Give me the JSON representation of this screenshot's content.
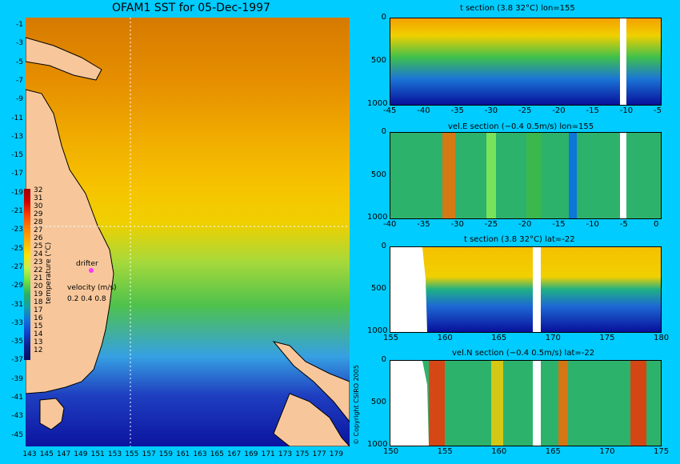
{
  "map": {
    "title": "OFAM1 SST for 05-Dec-1997",
    "lat_ticks": [
      "-1",
      "-3",
      "-5",
      "-7",
      "-9",
      "-11",
      "-13",
      "-15",
      "-17",
      "-19",
      "-21",
      "-23",
      "-25",
      "-27",
      "-29",
      "-31",
      "-33",
      "-35",
      "-37",
      "-39",
      "-41",
      "-43",
      "-45"
    ],
    "lon_ticks": [
      "143",
      "145",
      "147",
      "149",
      "151",
      "153",
      "155",
      "157",
      "159",
      "161",
      "163",
      "165",
      "167",
      "169",
      "171",
      "173",
      "175",
      "177",
      "179"
    ],
    "colorbar_label": "temperature (°C)",
    "colorbar_ticks": [
      "32",
      "31",
      "30",
      "29",
      "28",
      "27",
      "26",
      "25",
      "24",
      "23",
      "22",
      "21",
      "20",
      "19",
      "18",
      "17",
      "16",
      "15",
      "14",
      "13",
      "12"
    ],
    "drifter_label": "drifter",
    "velocity_label": "velocity (m/s)",
    "velocity_values": "0.2 0.4 0.8"
  },
  "sections": {
    "panel1": {
      "title": "t section (3.8    32°C) lon=155",
      "x_ticks": [
        "-45",
        "-40",
        "-35",
        "-30",
        "-25",
        "-20",
        "-15",
        "-10",
        "-5"
      ],
      "y_ticks": [
        "0",
        "500",
        "1000"
      ]
    },
    "panel2": {
      "title": "vel.E section (−0.4     0.5m/s) lon=155",
      "x_ticks": [
        "-40",
        "-35",
        "-30",
        "-25",
        "-20",
        "-15",
        "-10",
        "-5",
        "0"
      ],
      "y_ticks": [
        "0",
        "500",
        "1000"
      ]
    },
    "panel3": {
      "title": "t section (3.8    32°C) lat=-22",
      "x_ticks": [
        "155",
        "160",
        "165",
        "170",
        "175",
        "180"
      ],
      "y_ticks": [
        "0",
        "500",
        "1000"
      ]
    },
    "panel4": {
      "title": "vel.N section (−0.4     0.5m/s) lat=-22",
      "x_ticks": [
        "150",
        "155",
        "160",
        "165",
        "170",
        "175"
      ],
      "y_ticks": [
        "0",
        "500",
        "1000"
      ]
    }
  },
  "copyright": "© Copyright CSIRO 2005"
}
